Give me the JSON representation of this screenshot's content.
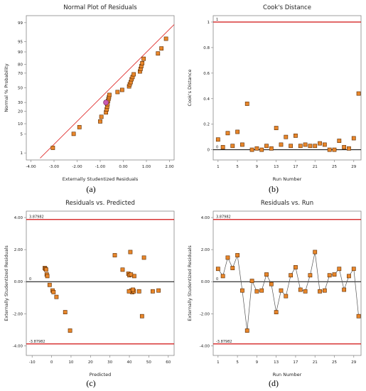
{
  "captions": [
    "(a)",
    "(b)",
    "(c)",
    "(d)"
  ],
  "colors": {
    "point_fill": "#e8862a",
    "point_stroke": "#5a2a00",
    "ref_line": "#e03030",
    "limit_line": "#d01010",
    "zero_line": "#000000",
    "connector": "#555555"
  },
  "chart_data": [
    {
      "type": "scatter",
      "title": "Normal Plot of Residuals",
      "xlabel": "Externally Studentized Residuals",
      "ylabel": "Normal % Probability",
      "x_ticks": [
        "-4.00",
        "-3.00",
        "-2.00",
        "-1.00",
        "0.00",
        "1.00",
        "2.00"
      ],
      "y_ticks": [
        "1",
        "5",
        "10",
        "20",
        "30",
        "50",
        "70",
        "80",
        "90",
        "95",
        "99"
      ],
      "xlim": [
        -4.2,
        2.2
      ],
      "y_scale": "normal-probability",
      "points": [
        [
          -3.05,
          1.6
        ],
        [
          -2.15,
          5.0
        ],
        [
          -1.9,
          8.0
        ],
        [
          -1.0,
          11.5
        ],
        [
          -0.95,
          15.0
        ],
        [
          -0.75,
          19.0
        ],
        [
          -0.72,
          22.0
        ],
        [
          -0.7,
          25.0
        ],
        [
          -0.68,
          28.0
        ],
        [
          -0.75,
          30.0
        ],
        [
          -0.66,
          32.0
        ],
        [
          -0.64,
          34.5
        ],
        [
          -0.62,
          37.0
        ],
        [
          -0.6,
          40.0
        ],
        [
          -0.25,
          44.0
        ],
        [
          -0.05,
          47.0
        ],
        [
          0.25,
          52.0
        ],
        [
          0.28,
          55.0
        ],
        [
          0.32,
          58.0
        ],
        [
          0.36,
          62.0
        ],
        [
          0.4,
          65.0
        ],
        [
          0.45,
          68.5
        ],
        [
          0.72,
          72.0
        ],
        [
          0.75,
          75.0
        ],
        [
          0.78,
          78.0
        ],
        [
          0.82,
          81.0
        ],
        [
          0.88,
          85.0
        ],
        [
          1.5,
          89.0
        ],
        [
          1.65,
          92.0
        ],
        [
          1.85,
          96.0
        ]
      ],
      "highlight_point": [
        -0.75,
        30.0
      ],
      "fit_line": [
        [
          -3.6,
          0.05
        ],
        [
          2.2,
          98.8
        ]
      ]
    },
    {
      "type": "scatter",
      "title": "Cook's Distance",
      "xlabel": "Run Number",
      "ylabel": "Cook's Distance",
      "x_ticks": [
        "1",
        "5",
        "9",
        "13",
        "17",
        "21",
        "25",
        "29"
      ],
      "y_ticks": [
        "0",
        "0.2",
        "0.4",
        "0.6",
        "0.8",
        "1"
      ],
      "xlim": [
        0,
        30.5
      ],
      "ylim": [
        -0.08,
        1.05
      ],
      "limit": {
        "value": 1,
        "label": "1"
      },
      "baseline_label": "0",
      "x": [
        1,
        2,
        3,
        4,
        5,
        6,
        7,
        8,
        9,
        10,
        11,
        12,
        13,
        14,
        15,
        16,
        17,
        18,
        19,
        20,
        21,
        22,
        23,
        24,
        25,
        26,
        27,
        28,
        29,
        30
      ],
      "values": [
        0.08,
        0.02,
        0.13,
        0.03,
        0.14,
        0.04,
        0.36,
        0.0,
        0.01,
        0.0,
        0.03,
        0.01,
        0.17,
        0.04,
        0.1,
        0.03,
        0.11,
        0.03,
        0.04,
        0.03,
        0.03,
        0.05,
        0.04,
        0.0,
        0.0,
        0.07,
        0.02,
        0.01,
        0.09,
        0.44
      ]
    },
    {
      "type": "scatter",
      "title": "Residuals vs. Predicted",
      "xlabel": "Predicted",
      "ylabel": "Externally Studentized Residuals",
      "x_ticks": [
        "-10",
        "0",
        "10",
        "20",
        "30",
        "40",
        "50",
        "60"
      ],
      "y_ticks": [
        "4.00",
        "2.00",
        "0.00",
        "-2.00",
        "-4.00"
      ],
      "xlim": [
        -13,
        63
      ],
      "ylim": [
        -4.6,
        4.4
      ],
      "limits": [
        {
          "value": 3.87982,
          "label": "3.87982"
        },
        {
          "value": -3.87982,
          "label": "-3.87982"
        }
      ],
      "zero_label": "0",
      "points": [
        [
          -3.5,
          0.85
        ],
        [
          -3.2,
          0.8
        ],
        [
          -2.8,
          0.75
        ],
        [
          -2.5,
          0.45
        ],
        [
          -2.2,
          0.35
        ],
        [
          -1.0,
          -0.2
        ],
        [
          0.5,
          -0.55
        ],
        [
          1.0,
          -0.65
        ],
        [
          2.5,
          -0.95
        ],
        [
          7.0,
          -1.9
        ],
        [
          9.5,
          -3.05
        ],
        [
          32.5,
          1.65
        ],
        [
          36.5,
          0.75
        ],
        [
          39.5,
          0.5
        ],
        [
          40.5,
          1.85
        ],
        [
          40.0,
          0.4
        ],
        [
          42.5,
          0.35
        ],
        [
          41.0,
          -0.55
        ],
        [
          41.2,
          -0.6
        ],
        [
          41.5,
          -0.65
        ],
        [
          42.0,
          -0.55
        ],
        [
          42.3,
          -0.6
        ],
        [
          45.0,
          -0.6
        ],
        [
          46.5,
          -2.15
        ],
        [
          47.5,
          1.5
        ],
        [
          52.0,
          -0.6
        ],
        [
          55.0,
          -0.55
        ],
        [
          40.8,
          0.45
        ],
        [
          41.8,
          -0.5
        ],
        [
          39.8,
          -0.6
        ]
      ]
    },
    {
      "type": "line",
      "title": "Residuals vs. Run",
      "xlabel": "Run Number",
      "ylabel": "Externally Studentized Residuals",
      "x_ticks": [
        "1",
        "5",
        "9",
        "13",
        "17",
        "21",
        "25",
        "29"
      ],
      "y_ticks": [
        "4.00",
        "2.00",
        "0.00",
        "-2.00",
        "-4.00"
      ],
      "xlim": [
        0,
        30.5
      ],
      "ylim": [
        -4.6,
        4.4
      ],
      "limits": [
        {
          "value": 3.87982,
          "label": "3.87982"
        },
        {
          "value": -3.87982,
          "label": "-3.87982"
        }
      ],
      "zero_label": "0",
      "x": [
        1,
        2,
        3,
        4,
        5,
        6,
        7,
        8,
        9,
        10,
        11,
        12,
        13,
        14,
        15,
        16,
        17,
        18,
        19,
        20,
        21,
        22,
        23,
        24,
        25,
        26,
        27,
        28,
        29,
        30
      ],
      "values": [
        0.8,
        0.35,
        1.5,
        0.85,
        1.65,
        -0.55,
        -3.05,
        0.05,
        -0.6,
        -0.55,
        0.45,
        -0.15,
        -1.9,
        -0.55,
        -0.9,
        0.4,
        0.9,
        -0.5,
        -0.6,
        0.4,
        1.85,
        -0.6,
        -0.55,
        0.4,
        0.45,
        0.8,
        -0.5,
        0.35,
        0.8,
        -2.15
      ]
    }
  ]
}
